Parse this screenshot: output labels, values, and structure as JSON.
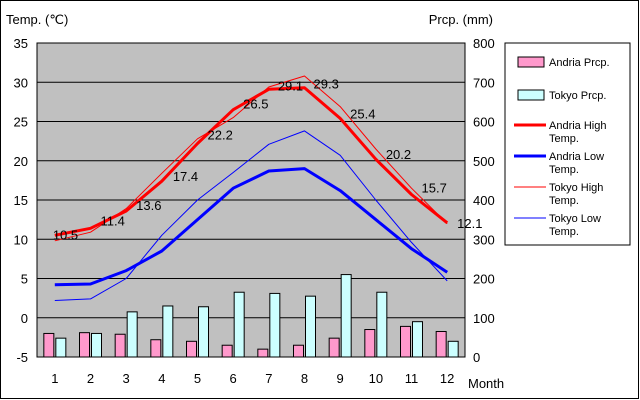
{
  "chart_data": {
    "type": "bar-line combo",
    "categories": [
      "1",
      "2",
      "3",
      "4",
      "5",
      "6",
      "7",
      "8",
      "9",
      "10",
      "11",
      "12"
    ],
    "xlabel": "Month",
    "y_left_label": "Temp. (℃)",
    "y_right_label": "Prcp. (mm)",
    "y_left_lim": [
      -5,
      35
    ],
    "y_right_lim": [
      0,
      800
    ],
    "y_left_ticks": [
      "-5",
      "0",
      "5",
      "10",
      "15",
      "20",
      "25",
      "30",
      "35"
    ],
    "y_right_ticks": [
      "0",
      "100",
      "200",
      "300",
      "400",
      "500",
      "600",
      "700",
      "800"
    ],
    "grid": "horizontal, left axis",
    "legend_position": "right",
    "bar_series": [
      {
        "name": "Andria Prcp.",
        "color": "#ff99cc",
        "axis": "right",
        "values": [
          60,
          62,
          58,
          44,
          40,
          30,
          20,
          30,
          48,
          70,
          78,
          65
        ]
      },
      {
        "name": "Tokyo Prcp.",
        "color": "#ccffff",
        "axis": "right",
        "values": [
          48,
          60,
          115,
          130,
          128,
          165,
          162,
          155,
          210,
          165,
          90,
          40
        ]
      }
    ],
    "line_series": [
      {
        "name": "Andria High Temp.",
        "color": "#ff0000",
        "axis": "left",
        "width": 3,
        "values": [
          10.5,
          11.4,
          13.6,
          17.4,
          22.2,
          26.5,
          29.1,
          29.3,
          25.4,
          20.2,
          15.7,
          12.1
        ],
        "labels": [
          "10.5",
          "11.4",
          "13.6",
          "17.4",
          "22.2",
          "26.5",
          "29.1",
          "29.3",
          "25.4",
          "20.2",
          "15.7",
          "12.1"
        ]
      },
      {
        "name": "Andria Low Temp.",
        "color": "#0000ff",
        "axis": "left",
        "width": 3,
        "values": [
          4.2,
          4.3,
          6.0,
          8.5,
          12.5,
          16.5,
          18.7,
          19.0,
          16.2,
          12.5,
          8.8,
          5.8
        ]
      },
      {
        "name": "Tokyo High Temp.",
        "color": "#ff0000",
        "axis": "left",
        "width": 1,
        "values": [
          9.8,
          10.9,
          13.9,
          18.4,
          22.8,
          25.5,
          29.4,
          30.8,
          26.9,
          21.5,
          16.5,
          12.0
        ]
      },
      {
        "name": "Tokyo Low Temp.",
        "color": "#0000ff",
        "axis": "left",
        "width": 1,
        "values": [
          2.2,
          2.4,
          5.0,
          10.5,
          15.0,
          18.5,
          22.1,
          23.8,
          20.7,
          15.0,
          9.6,
          4.7
        ]
      }
    ]
  },
  "legend": {
    "items": [
      {
        "label": "Andria Prcp.",
        "kind": "bar",
        "color": "#ff99cc"
      },
      {
        "label": "Tokyo Prcp.",
        "kind": "bar",
        "color": "#ccffff"
      },
      {
        "label": "Andria High Temp.",
        "kind": "line",
        "color": "#ff0000",
        "width": 3
      },
      {
        "label": "Andria Low Temp.",
        "kind": "line",
        "color": "#0000ff",
        "width": 3
      },
      {
        "label": "Tokyo High Temp.",
        "kind": "line",
        "color": "#ff0000",
        "width": 1
      },
      {
        "label": "Tokyo Low Temp.",
        "kind": "line",
        "color": "#0000ff",
        "width": 1
      }
    ]
  },
  "colors": {
    "plot_background": "#c0c0c0",
    "gridline": "#000000",
    "frame": "#000000"
  }
}
